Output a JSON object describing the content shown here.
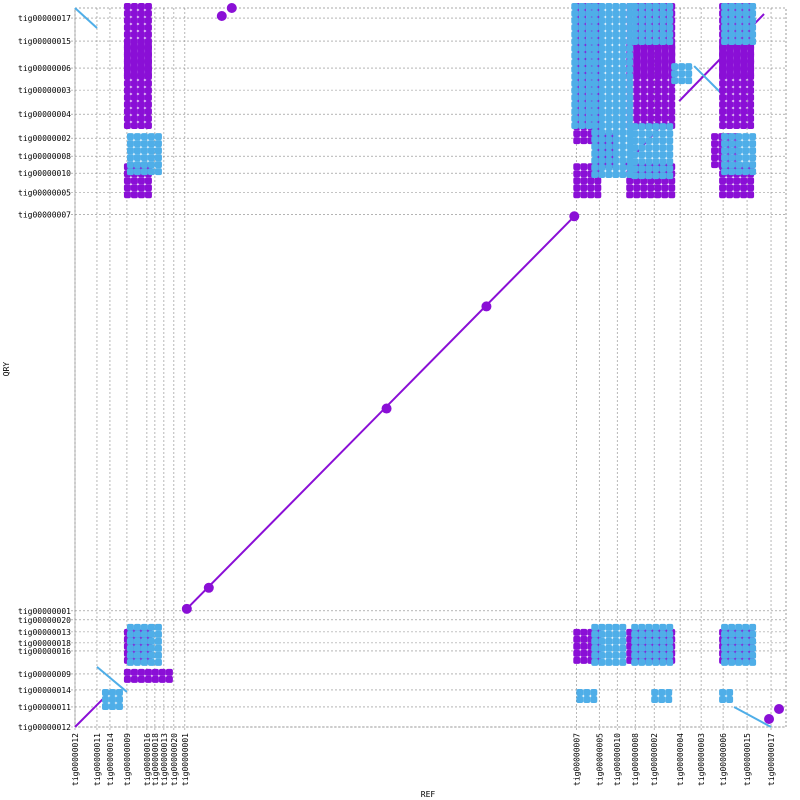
{
  "chart_data": {
    "type": "scatter",
    "title": "",
    "xlabel": "REF",
    "ylabel": "QRY",
    "grid": true,
    "colors": {
      "forward": "#8a0fd6",
      "reverse": "#4faee8",
      "line": "#a050e0",
      "grid": "#888888"
    },
    "x_ticks": [
      {
        "label": "tig00000012",
        "pos": 0
      },
      {
        "label": "tig00000011",
        "pos": 22
      },
      {
        "label": "tig00000014",
        "pos": 35
      },
      {
        "label": "tig00000009",
        "pos": 52
      },
      {
        "label": "tig00000016",
        "pos": 72
      },
      {
        "label": "tig00000018",
        "pos": 80
      },
      {
        "label": "tig00000013",
        "pos": 89
      },
      {
        "label": "tig00000020",
        "pos": 99
      },
      {
        "label": "tig00000001",
        "pos": 110
      },
      {
        "label": "tig00000007",
        "pos": 502
      },
      {
        "label": "tig00000005",
        "pos": 525
      },
      {
        "label": "tig00000010",
        "pos": 543
      },
      {
        "label": "tig00000008",
        "pos": 561
      },
      {
        "label": "tig00000002",
        "pos": 580
      },
      {
        "label": "tig00000004",
        "pos": 606
      },
      {
        "label": "tig00000003",
        "pos": 627
      },
      {
        "label": "tig00000006",
        "pos": 649
      },
      {
        "label": "tig00000015",
        "pos": 673
      },
      {
        "label": "tig00000017",
        "pos": 697
      }
    ],
    "y_ticks": [
      {
        "label": "tig00000012",
        "pos": 0
      },
      {
        "label": "tig00000011",
        "pos": 20
      },
      {
        "label": "tig00000014",
        "pos": 37
      },
      {
        "label": "tig00000009",
        "pos": 53
      },
      {
        "label": "tig00000016",
        "pos": 76
      },
      {
        "label": "tig00000018",
        "pos": 84
      },
      {
        "label": "tig00000013",
        "pos": 95
      },
      {
        "label": "tig00000020",
        "pos": 107
      },
      {
        "label": "tig00000001",
        "pos": 116
      },
      {
        "label": "tig00000007",
        "pos": 512
      },
      {
        "label": "tig00000005",
        "pos": 534
      },
      {
        "label": "tig00000010",
        "pos": 553
      },
      {
        "label": "tig00000008",
        "pos": 570
      },
      {
        "label": "tig00000002",
        "pos": 588
      },
      {
        "label": "tig00000004",
        "pos": 612
      },
      {
        "label": "tig00000003",
        "pos": 636
      },
      {
        "label": "tig00000006",
        "pos": 658
      },
      {
        "label": "tig00000015",
        "pos": 685
      },
      {
        "label": "tig00000017",
        "pos": 708
      }
    ],
    "xlim": [
      0,
      712
    ],
    "ylim": [
      0,
      718
    ],
    "series": [
      {
        "type": "line",
        "color": "forward",
        "segments": [
          [
            110,
            116,
            502,
            512
          ]
        ]
      },
      {
        "type": "points",
        "color": "forward",
        "points": [
          [
            112,
            118
          ],
          [
            134,
            139
          ],
          [
            312,
            318
          ],
          [
            412,
            420
          ],
          [
            500,
            510
          ],
          [
            147,
            710
          ],
          [
            157,
            718
          ],
          [
            695,
            8
          ],
          [
            705,
            18
          ]
        ]
      },
      {
        "type": "line",
        "color": "forward",
        "segments": [
          [
            0,
            0,
            20,
            20
          ],
          [
            20,
            20,
            35,
            35
          ],
          [
            605,
            625,
            690,
            712
          ],
          [
            550,
            560,
            600,
            615
          ]
        ]
      },
      {
        "type": "line",
        "color": "reverse",
        "segments": [
          [
            0,
            718,
            22,
            698
          ],
          [
            660,
            20,
            697,
            0
          ],
          [
            22,
            60,
            52,
            35
          ],
          [
            620,
            660,
            650,
            630
          ]
        ]
      },
      {
        "type": "blocks",
        "color": "forward",
        "blocks": [
          [
            52,
            64,
            75,
            95
          ],
          [
            52,
            600,
            80,
            720
          ],
          [
            502,
            64,
            530,
            95
          ],
          [
            502,
            600,
            530,
            720
          ],
          [
            555,
            64,
            600,
            95
          ],
          [
            555,
            600,
            600,
            720
          ],
          [
            648,
            64,
            680,
            95
          ],
          [
            648,
            600,
            680,
            720
          ],
          [
            52,
            44,
            75,
            55
          ],
          [
            80,
            44,
            100,
            55
          ],
          [
            502,
            580,
            525,
            600
          ],
          [
            525,
            560,
            545,
            590
          ],
          [
            640,
            560,
            665,
            590
          ],
          [
            52,
            530,
            80,
            560
          ],
          [
            52,
            650,
            80,
            680
          ],
          [
            502,
            650,
            530,
            680
          ],
          [
            555,
            650,
            600,
            680
          ],
          [
            648,
            650,
            680,
            680
          ],
          [
            502,
            530,
            530,
            560
          ],
          [
            555,
            530,
            600,
            560
          ],
          [
            648,
            530,
            680,
            560
          ]
        ]
      },
      {
        "type": "blocks",
        "color": "reverse",
        "blocks": [
          [
            55,
            60,
            90,
            100
          ],
          [
            520,
            60,
            555,
            100
          ],
          [
            560,
            60,
            600,
            100
          ],
          [
            650,
            60,
            680,
            100
          ],
          [
            55,
            550,
            90,
            590
          ],
          [
            520,
            550,
            560,
            720
          ],
          [
            560,
            550,
            600,
            600
          ],
          [
            650,
            550,
            680,
            590
          ],
          [
            30,
            20,
            45,
            35
          ],
          [
            500,
            600,
            520,
            720
          ],
          [
            560,
            680,
            600,
            720
          ],
          [
            650,
            680,
            680,
            720
          ],
          [
            505,
            25,
            520,
            35
          ],
          [
            580,
            25,
            600,
            35
          ],
          [
            648,
            25,
            660,
            35
          ],
          [
            600,
            640,
            620,
            660
          ]
        ]
      }
    ]
  }
}
